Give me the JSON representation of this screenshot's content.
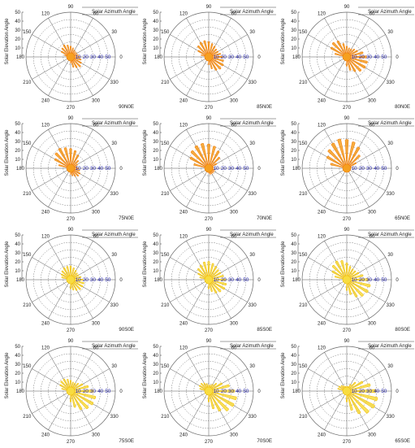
{
  "figure": {
    "legend_label": "Solar Azimuth Angle",
    "y_axis_label": "Solar Elevation Angle",
    "angle_ticks": [
      "0",
      "30",
      "60",
      "90",
      "120",
      "150",
      "180",
      "210",
      "240",
      "270",
      "300",
      "330"
    ],
    "radial_ticks": [
      "10",
      "20",
      "30",
      "40",
      "50"
    ],
    "radial_tick_color": "#1f1fa8",
    "left_scale_ticks": [
      "10",
      "20",
      "30",
      "40",
      "50"
    ]
  },
  "chart_data": [
    {
      "type": "polar",
      "label": "90N0E",
      "color": "#f08010",
      "fill": "#f6a020",
      "rmax": [
        8,
        14,
        16,
        18,
        16,
        14,
        12,
        10,
        9,
        9,
        10,
        12,
        14,
        16,
        18,
        16,
        14,
        8
      ],
      "angles": [
        270,
        285,
        300,
        315,
        330,
        345,
        0,
        15,
        30,
        45,
        60,
        75,
        90,
        105,
        120,
        135,
        150,
        165
      ],
      "rlim": [
        0,
        60
      ],
      "grid": true,
      "legend": "top-right"
    },
    {
      "type": "polar",
      "label": "85N0E",
      "color": "#f08010",
      "fill": "#f6a020",
      "rmax": [
        10,
        16,
        20,
        22,
        22,
        20,
        18,
        16,
        14,
        14,
        16,
        18,
        20,
        22,
        22,
        20,
        16,
        10
      ],
      "angles": [
        270,
        285,
        300,
        315,
        330,
        345,
        0,
        15,
        30,
        45,
        60,
        75,
        90,
        105,
        120,
        135,
        150,
        165
      ],
      "rlim": [
        0,
        60
      ],
      "grid": true,
      "legend": "top-right"
    },
    {
      "type": "polar",
      "label": "80N0E",
      "color": "#f08010",
      "fill": "#f6a020",
      "rmax": [
        12,
        18,
        22,
        26,
        28,
        28,
        26,
        22,
        16,
        14,
        12,
        12,
        14,
        18,
        24,
        26,
        24,
        16
      ],
      "angles": [
        270,
        285,
        300,
        315,
        330,
        345,
        0,
        15,
        30,
        45,
        60,
        75,
        90,
        105,
        120,
        135,
        150,
        165
      ],
      "rlim": [
        0,
        60
      ],
      "grid": true,
      "legend": "top-right"
    },
    {
      "type": "polar",
      "label": "75N0E",
      "color": "#f08010",
      "fill": "#f6a020",
      "rmax": [
        8,
        10,
        12,
        14,
        14,
        12,
        10,
        8,
        10,
        14,
        20,
        24,
        26,
        28,
        30,
        28,
        24,
        16
      ],
      "angles": [
        270,
        285,
        300,
        315,
        330,
        345,
        0,
        15,
        30,
        45,
        60,
        75,
        90,
        105,
        120,
        135,
        150,
        165
      ],
      "rlim": [
        0,
        60
      ],
      "grid": true,
      "legend": "top-right"
    },
    {
      "type": "polar",
      "label": "70N0E",
      "color": "#f08010",
      "fill": "#f6a020",
      "rmax": [
        6,
        8,
        8,
        8,
        8,
        8,
        6,
        6,
        12,
        20,
        26,
        30,
        32,
        34,
        34,
        32,
        28,
        20
      ],
      "angles": [
        270,
        285,
        300,
        315,
        330,
        345,
        0,
        15,
        30,
        45,
        60,
        75,
        90,
        105,
        120,
        135,
        150,
        165
      ],
      "rlim": [
        0,
        60
      ],
      "grid": true,
      "legend": "top-right"
    },
    {
      "type": "polar",
      "label": "65N0E",
      "color": "#f08010",
      "fill": "#f6a020",
      "rmax": [
        4,
        4,
        4,
        4,
        4,
        4,
        4,
        6,
        14,
        24,
        32,
        36,
        38,
        40,
        38,
        34,
        30,
        22
      ],
      "angles": [
        270,
        285,
        300,
        315,
        330,
        345,
        0,
        15,
        30,
        45,
        60,
        75,
        90,
        105,
        120,
        135,
        150,
        165
      ],
      "rlim": [
        0,
        60
      ],
      "grid": true,
      "legend": "top-right"
    },
    {
      "type": "polar",
      "label": "90S0E",
      "color": "#f0c010",
      "fill": "#f8dc40",
      "rmax": [
        12,
        14,
        16,
        18,
        18,
        18,
        16,
        14,
        12,
        12,
        14,
        16,
        18,
        18,
        18,
        16,
        14,
        12
      ],
      "angles": [
        270,
        285,
        300,
        315,
        330,
        345,
        0,
        15,
        30,
        45,
        60,
        75,
        90,
        105,
        120,
        135,
        150,
        165
      ],
      "rlim": [
        0,
        60
      ],
      "grid": true,
      "legend": "top-right"
    },
    {
      "type": "polar",
      "label": "85S0E",
      "color": "#f0c010",
      "fill": "#f8dc40",
      "rmax": [
        12,
        16,
        20,
        22,
        24,
        24,
        22,
        20,
        18,
        18,
        20,
        22,
        24,
        24,
        22,
        20,
        16,
        12
      ],
      "angles": [
        270,
        285,
        300,
        315,
        330,
        345,
        0,
        15,
        30,
        45,
        60,
        75,
        90,
        105,
        120,
        135,
        150,
        165
      ],
      "rlim": [
        0,
        60
      ],
      "grid": true,
      "legend": "top-right"
    },
    {
      "type": "polar",
      "label": "80S0E",
      "color": "#f0c010",
      "fill": "#f8dc40",
      "rmax": [
        14,
        20,
        26,
        30,
        32,
        32,
        28,
        22,
        18,
        16,
        16,
        18,
        22,
        26,
        28,
        26,
        22,
        16
      ],
      "angles": [
        270,
        285,
        300,
        315,
        330,
        345,
        0,
        15,
        30,
        45,
        60,
        75,
        90,
        105,
        120,
        135,
        150,
        165
      ],
      "rlim": [
        0,
        60
      ],
      "grid": true,
      "legend": "top-right"
    },
    {
      "type": "polar",
      "label": "75S0E",
      "color": "#f0c010",
      "fill": "#f8dc40",
      "rmax": [
        14,
        22,
        28,
        32,
        34,
        34,
        30,
        24,
        18,
        14,
        12,
        12,
        14,
        16,
        18,
        18,
        16,
        12
      ],
      "angles": [
        270,
        285,
        300,
        315,
        330,
        345,
        0,
        15,
        30,
        45,
        60,
        75,
        90,
        105,
        120,
        135,
        150,
        165
      ],
      "rlim": [
        0,
        60
      ],
      "grid": true,
      "legend": "top-right"
    },
    {
      "type": "polar",
      "label": "70S0E",
      "color": "#f0c010",
      "fill": "#f8dc40",
      "rmax": [
        14,
        24,
        30,
        36,
        38,
        38,
        34,
        28,
        20,
        14,
        10,
        8,
        8,
        10,
        12,
        14,
        14,
        12
      ],
      "angles": [
        270,
        285,
        300,
        315,
        330,
        345,
        0,
        15,
        30,
        45,
        60,
        75,
        90,
        105,
        120,
        135,
        150,
        165
      ],
      "rlim": [
        0,
        60
      ],
      "grid": true,
      "legend": "top-right"
    },
    {
      "type": "polar",
      "label": "65S0E",
      "color": "#f0c010",
      "fill": "#f8dc40",
      "rmax": [
        14,
        26,
        34,
        40,
        42,
        42,
        38,
        32,
        24,
        16,
        10,
        6,
        6,
        6,
        8,
        10,
        12,
        12
      ],
      "angles": [
        270,
        285,
        300,
        315,
        330,
        345,
        0,
        15,
        30,
        45,
        60,
        75,
        90,
        105,
        120,
        135,
        150,
        165
      ],
      "rlim": [
        0,
        60
      ],
      "grid": true,
      "legend": "top-right"
    }
  ]
}
